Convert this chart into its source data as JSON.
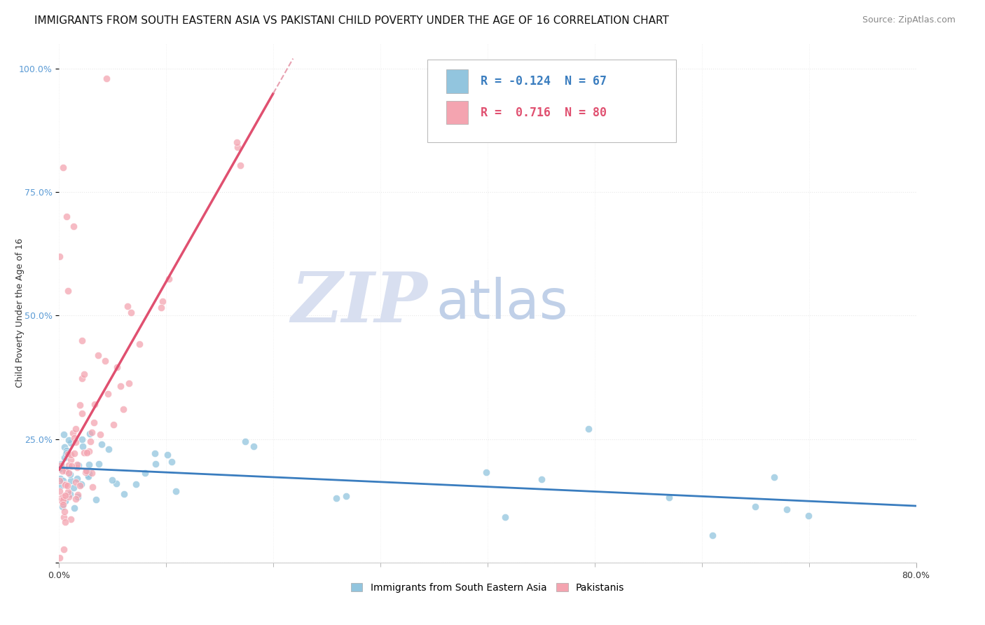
{
  "title": "IMMIGRANTS FROM SOUTH EASTERN ASIA VS PAKISTANI CHILD POVERTY UNDER THE AGE OF 16 CORRELATION CHART",
  "source": "Source: ZipAtlas.com",
  "ylabel": "Child Poverty Under the Age of 16",
  "watermark_zip": "ZIP",
  "watermark_atlas": "atlas",
  "legend_blue_r": "-0.124",
  "legend_blue_n": "67",
  "legend_pink_r": "0.716",
  "legend_pink_n": "80",
  "legend_blue_label": "Immigrants from South Eastern Asia",
  "legend_pink_label": "Pakistanis",
  "blue_color": "#92c5de",
  "pink_color": "#f4a4b0",
  "blue_line_color": "#3a7dbf",
  "pink_line_color": "#e05070",
  "pink_dashed_color": "#e8a0b0",
  "background_color": "#ffffff",
  "grid_color": "#e8e8e8",
  "title_fontsize": 11,
  "source_fontsize": 9,
  "axis_fontsize": 9,
  "legend_fontsize": 12,
  "watermark_zip_color": "#d8dff0",
  "watermark_atlas_color": "#c0d0e8",
  "watermark_fontsize": 72,
  "ytick_color": "#5b9bd5",
  "xlim": [
    0.0,
    0.8
  ],
  "ylim": [
    0.0,
    1.05
  ]
}
